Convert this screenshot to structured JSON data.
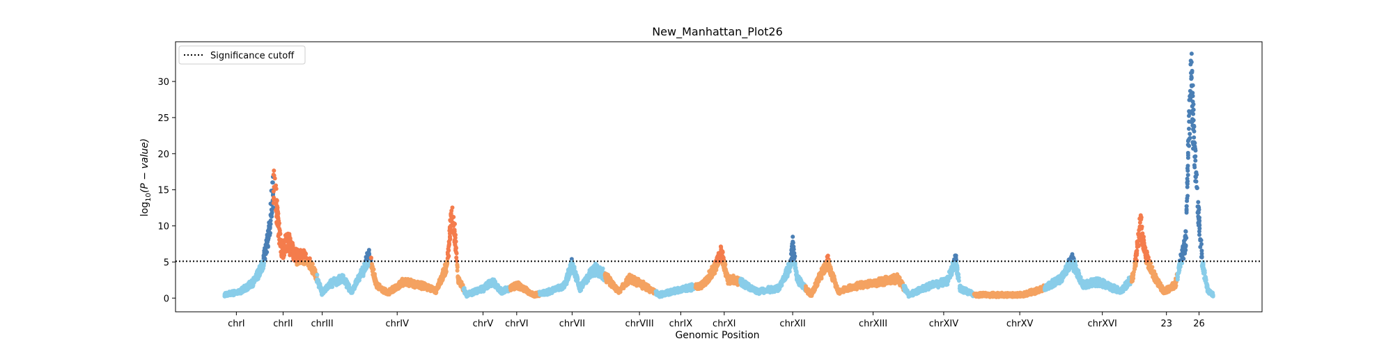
{
  "chart_data": {
    "type": "scatter",
    "title": "New_Manhattan_Plot26",
    "xlabel": "Genomic Position",
    "ylabel": "log10(P − value)",
    "ylabel_parts": {
      "base": "log",
      "sub": "10",
      "arg": "(P − value)"
    },
    "ylim": [
      -1.9,
      35.5
    ],
    "yticks": [
      0,
      5,
      10,
      15,
      20,
      25,
      30
    ],
    "xlim": [
      0,
      1000
    ],
    "threshold": 5.1,
    "legend": {
      "placement": "top-left",
      "label": "Significance cutoff"
    },
    "grid": false,
    "colors": {
      "sky": "#89cde9",
      "orange": "#f4a261",
      "tomato": "#f47c4c",
      "steel": "#4a7fb5"
    },
    "chromosomes": [
      {
        "name": "chrI",
        "start": 45,
        "end": 90,
        "tick": 56,
        "color_low": "sky",
        "color_high": "steel"
      },
      {
        "name": "chrII",
        "start": 90,
        "end": 130,
        "tick": 99,
        "color_low": "orange",
        "color_high": "tomato"
      },
      {
        "name": "chrIII",
        "start": 130,
        "end": 180,
        "tick": 135,
        "color_low": "sky",
        "color_high": "steel"
      },
      {
        "name": "chrIV",
        "start": 180,
        "end": 265,
        "tick": 204,
        "color_low": "orange",
        "color_high": "tomato"
      },
      {
        "name": "chrV",
        "start": 265,
        "end": 308,
        "tick": 283,
        "color_low": "sky",
        "color_high": "steel"
      },
      {
        "name": "chrVI",
        "start": 308,
        "end": 335,
        "tick": 314,
        "color_low": "orange",
        "color_high": "tomato"
      },
      {
        "name": "chrVII",
        "start": 335,
        "end": 395,
        "tick": 365,
        "color_low": "sky",
        "color_high": "steel"
      },
      {
        "name": "chrVIII",
        "start": 395,
        "end": 442,
        "tick": 427,
        "color_low": "orange",
        "color_high": "tomato"
      },
      {
        "name": "chrIX",
        "start": 442,
        "end": 478,
        "tick": 465,
        "color_low": "sky",
        "color_high": "steel"
      },
      {
        "name": "chrXI",
        "start": 478,
        "end": 520,
        "tick": 505,
        "color_low": "orange",
        "color_high": "tomato"
      },
      {
        "name": "chrXII",
        "start": 520,
        "end": 580,
        "tick": 568,
        "color_low": "sky",
        "color_high": "steel"
      },
      {
        "name": "chrXIII",
        "start": 580,
        "end": 670,
        "tick": 642,
        "color_low": "orange",
        "color_high": "tomato"
      },
      {
        "name": "chrXIV",
        "start": 670,
        "end": 735,
        "tick": 707,
        "color_low": "sky",
        "color_high": "steel"
      },
      {
        "name": "chrXV",
        "start": 735,
        "end": 800,
        "tick": 777,
        "color_low": "orange",
        "color_high": "tomato"
      },
      {
        "name": "chrXVI",
        "start": 800,
        "end": 880,
        "tick": 853,
        "color_low": "sky",
        "color_high": "steel"
      },
      {
        "name": "23",
        "start": 880,
        "end": 922,
        "tick": 912,
        "color_low": "orange",
        "color_high": "tomato"
      },
      {
        "name": "26",
        "start": 922,
        "end": 955,
        "tick": 942,
        "color_low": "sky",
        "color_high": "steel"
      }
    ],
    "signal_profile": [
      {
        "x": 45,
        "y": 0.5
      },
      {
        "x": 60,
        "y": 1.0
      },
      {
        "x": 72,
        "y": 2.5
      },
      {
        "x": 80,
        "y": 5.0
      },
      {
        "x": 86,
        "y": 10.0
      },
      {
        "x": 89,
        "y": 15.5
      },
      {
        "x": 91,
        "y": 17.5
      },
      {
        "x": 94,
        "y": 12.0
      },
      {
        "x": 98,
        "y": 7.0
      },
      {
        "x": 103,
        "y": 9.0
      },
      {
        "x": 110,
        "y": 6.5
      },
      {
        "x": 120,
        "y": 6.0
      },
      {
        "x": 128,
        "y": 4.0
      },
      {
        "x": 135,
        "y": 0.8
      },
      {
        "x": 145,
        "y": 2.5
      },
      {
        "x": 155,
        "y": 3.0
      },
      {
        "x": 162,
        "y": 1.0
      },
      {
        "x": 172,
        "y": 4.0
      },
      {
        "x": 178,
        "y": 6.5
      },
      {
        "x": 185,
        "y": 2.0
      },
      {
        "x": 195,
        "y": 0.8
      },
      {
        "x": 210,
        "y": 2.5
      },
      {
        "x": 225,
        "y": 2.0
      },
      {
        "x": 240,
        "y": 1.2
      },
      {
        "x": 250,
        "y": 5.0
      },
      {
        "x": 254,
        "y": 13.0
      },
      {
        "x": 257,
        "y": 10.0
      },
      {
        "x": 260,
        "y": 3.0
      },
      {
        "x": 268,
        "y": 0.5
      },
      {
        "x": 283,
        "y": 1.5
      },
      {
        "x": 292,
        "y": 2.5
      },
      {
        "x": 300,
        "y": 1.0
      },
      {
        "x": 314,
        "y": 2.0
      },
      {
        "x": 330,
        "y": 0.5
      },
      {
        "x": 345,
        "y": 1.0
      },
      {
        "x": 358,
        "y": 2.0
      },
      {
        "x": 365,
        "y": 5.3
      },
      {
        "x": 372,
        "y": 1.5
      },
      {
        "x": 385,
        "y": 4.5
      },
      {
        "x": 395,
        "y": 3.5
      },
      {
        "x": 408,
        "y": 1.0
      },
      {
        "x": 418,
        "y": 3.0
      },
      {
        "x": 430,
        "y": 2.0
      },
      {
        "x": 445,
        "y": 0.5
      },
      {
        "x": 470,
        "y": 1.5
      },
      {
        "x": 485,
        "y": 2.0
      },
      {
        "x": 496,
        "y": 4.5
      },
      {
        "x": 502,
        "y": 7.0
      },
      {
        "x": 508,
        "y": 3.0
      },
      {
        "x": 520,
        "y": 2.5
      },
      {
        "x": 535,
        "y": 1.0
      },
      {
        "x": 555,
        "y": 1.5
      },
      {
        "x": 566,
        "y": 5.0
      },
      {
        "x": 568,
        "y": 8.2
      },
      {
        "x": 572,
        "y": 3.0
      },
      {
        "x": 585,
        "y": 0.5
      },
      {
        "x": 600,
        "y": 5.7
      },
      {
        "x": 610,
        "y": 1.0
      },
      {
        "x": 630,
        "y": 2.0
      },
      {
        "x": 650,
        "y": 2.5
      },
      {
        "x": 665,
        "y": 3.0
      },
      {
        "x": 675,
        "y": 0.5
      },
      {
        "x": 695,
        "y": 2.0
      },
      {
        "x": 710,
        "y": 2.5
      },
      {
        "x": 718,
        "y": 6.0
      },
      {
        "x": 722,
        "y": 1.5
      },
      {
        "x": 735,
        "y": 0.5
      },
      {
        "x": 780,
        "y": 0.5
      },
      {
        "x": 800,
        "y": 1.5
      },
      {
        "x": 815,
        "y": 3.0
      },
      {
        "x": 825,
        "y": 5.8
      },
      {
        "x": 835,
        "y": 2.0
      },
      {
        "x": 850,
        "y": 2.5
      },
      {
        "x": 870,
        "y": 1.0
      },
      {
        "x": 882,
        "y": 3.5
      },
      {
        "x": 888,
        "y": 11.5
      },
      {
        "x": 893,
        "y": 6.5
      },
      {
        "x": 900,
        "y": 3.5
      },
      {
        "x": 910,
        "y": 1.0
      },
      {
        "x": 920,
        "y": 2.0
      },
      {
        "x": 930,
        "y": 9.0
      },
      {
        "x": 933,
        "y": 28.0
      },
      {
        "x": 935,
        "y": 33.0
      },
      {
        "x": 938,
        "y": 22.0
      },
      {
        "x": 942,
        "y": 12.0
      },
      {
        "x": 945,
        "y": 5.5
      },
      {
        "x": 950,
        "y": 1.2
      },
      {
        "x": 955,
        "y": 0.5
      }
    ]
  }
}
